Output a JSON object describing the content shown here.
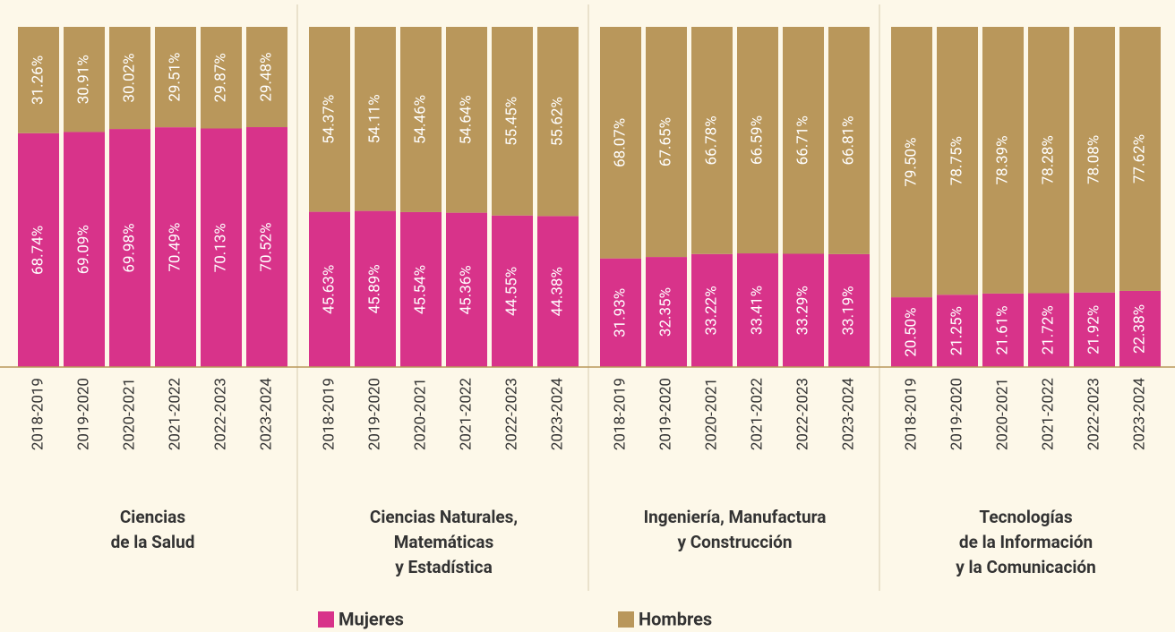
{
  "chart_data": {
    "type": "bar",
    "stacked": true,
    "ylim": [
      0,
      100
    ],
    "legend": [
      {
        "name": "Mujeres",
        "color": "#d8338a"
      },
      {
        "name": "Hombres",
        "color": "#b9975b"
      }
    ],
    "panels": [
      {
        "title": [
          "Ciencias",
          "de la Salud"
        ],
        "categories": [
          "2018-2019",
          "2019-2020",
          "2020-2021",
          "2021-2022",
          "2022-2023",
          "2023-2024"
        ],
        "series": [
          {
            "values": [
              68.74,
              69.09,
              69.98,
              70.49,
              70.13,
              70.52
            ],
            "value_labels": [
              "68.74%",
              "69.09%",
              "69.98%",
              "70.49%",
              "70.13%",
              "70.52%"
            ]
          },
          {
            "values": [
              31.26,
              30.91,
              30.02,
              29.51,
              29.87,
              29.48
            ],
            "value_labels": [
              "31.26%",
              "30.91%",
              "30.02%",
              "29.51%",
              "29.87%",
              "29.48%"
            ]
          }
        ]
      },
      {
        "title": [
          "Ciencias Naturales,",
          "Matemáticas",
          "y Estadística"
        ],
        "categories": [
          "2018-2019",
          "2019-2020",
          "2020-2021",
          "2021-2022",
          "2022-2023",
          "2023-2024"
        ],
        "series": [
          {
            "values": [
              45.63,
              45.89,
              45.54,
              45.36,
              44.55,
              44.38
            ],
            "value_labels": [
              "45.63%",
              "45.89%",
              "45.54%",
              "45.36%",
              "44.55%",
              "44.38%"
            ]
          },
          {
            "values": [
              54.37,
              54.11,
              54.46,
              54.64,
              55.45,
              55.62
            ],
            "value_labels": [
              "54.37%",
              "54.11%",
              "54.46%",
              "54.64%",
              "55.45%",
              "55.62%"
            ]
          }
        ]
      },
      {
        "title": [
          "Ingeniería, Manufactura",
          "y Construcción"
        ],
        "categories": [
          "2018-2019",
          "2019-2020",
          "2020-2021",
          "2021-2022",
          "2022-2023",
          "2023-2024"
        ],
        "series": [
          {
            "values": [
              31.93,
              32.35,
              33.22,
              33.41,
              33.29,
              33.19
            ],
            "value_labels": [
              "31.93%",
              "32.35%",
              "33.22%",
              "33.41%",
              "33.29%",
              "33.19%"
            ]
          },
          {
            "values": [
              68.07,
              67.65,
              66.78,
              66.59,
              66.71,
              66.81
            ],
            "value_labels": [
              "68.07%",
              "67.65%",
              "66.78%",
              "66.59%",
              "66.71%",
              "66.81%"
            ]
          }
        ]
      },
      {
        "title": [
          "Tecnologías",
          "de la Información",
          "y la Comunicación"
        ],
        "categories": [
          "2018-2019",
          "2019-2020",
          "2020-2021",
          "2021-2022",
          "2022-2023",
          "2023-2024"
        ],
        "series": [
          {
            "values": [
              20.5,
              21.25,
              21.61,
              21.72,
              21.92,
              22.38
            ],
            "value_labels": [
              "20.50%",
              "21.25%",
              "21.61%",
              "21.72%",
              "21.92%",
              "22.38%"
            ]
          },
          {
            "values": [
              79.5,
              78.75,
              78.39,
              78.28,
              78.08,
              77.62
            ],
            "value_labels": [
              "79.50%",
              "78.75%",
              "78.39%",
              "78.28%",
              "78.08%",
              "77.62%"
            ]
          }
        ]
      }
    ]
  }
}
